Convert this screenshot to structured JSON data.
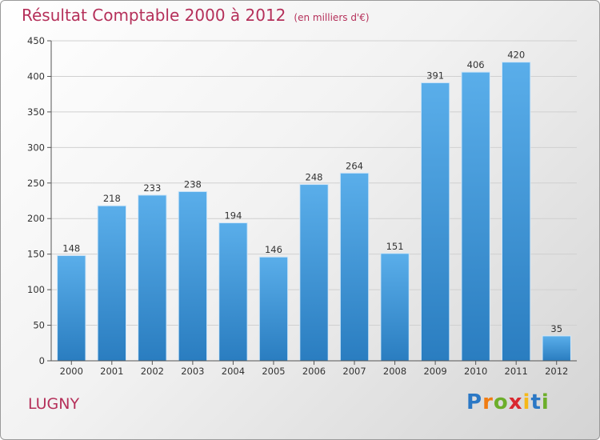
{
  "title": "Résultat Comptable 2000 à 2012",
  "subtitle": "(en milliers d'€)",
  "place": "LUGNY",
  "logo": {
    "letters": [
      "P",
      "r",
      "o",
      "x",
      "i",
      "t",
      "i"
    ],
    "colors": [
      "#2b78c5",
      "#f07c12",
      "#6cae2a",
      "#d9282f",
      "#f6b818",
      "#2b78c5",
      "#6cae2a"
    ]
  },
  "colors": {
    "bar": "#3f95d8",
    "bar_light": "#63b2ea",
    "title": "#b5305a"
  },
  "chart_data": {
    "type": "bar",
    "title": "Résultat Comptable 2000 à 2012",
    "subtitle": "(en milliers d'€)",
    "categories": [
      "2000",
      "2001",
      "2002",
      "2003",
      "2004",
      "2005",
      "2006",
      "2007",
      "2008",
      "2009",
      "2010",
      "2011",
      "2012"
    ],
    "values": [
      148,
      218,
      233,
      238,
      194,
      146,
      248,
      264,
      151,
      391,
      406,
      420,
      35
    ],
    "ylim": [
      0,
      450
    ],
    "yticks": [
      0,
      50,
      100,
      150,
      200,
      250,
      300,
      350,
      400,
      450
    ],
    "grid": true,
    "data_labels": true
  }
}
